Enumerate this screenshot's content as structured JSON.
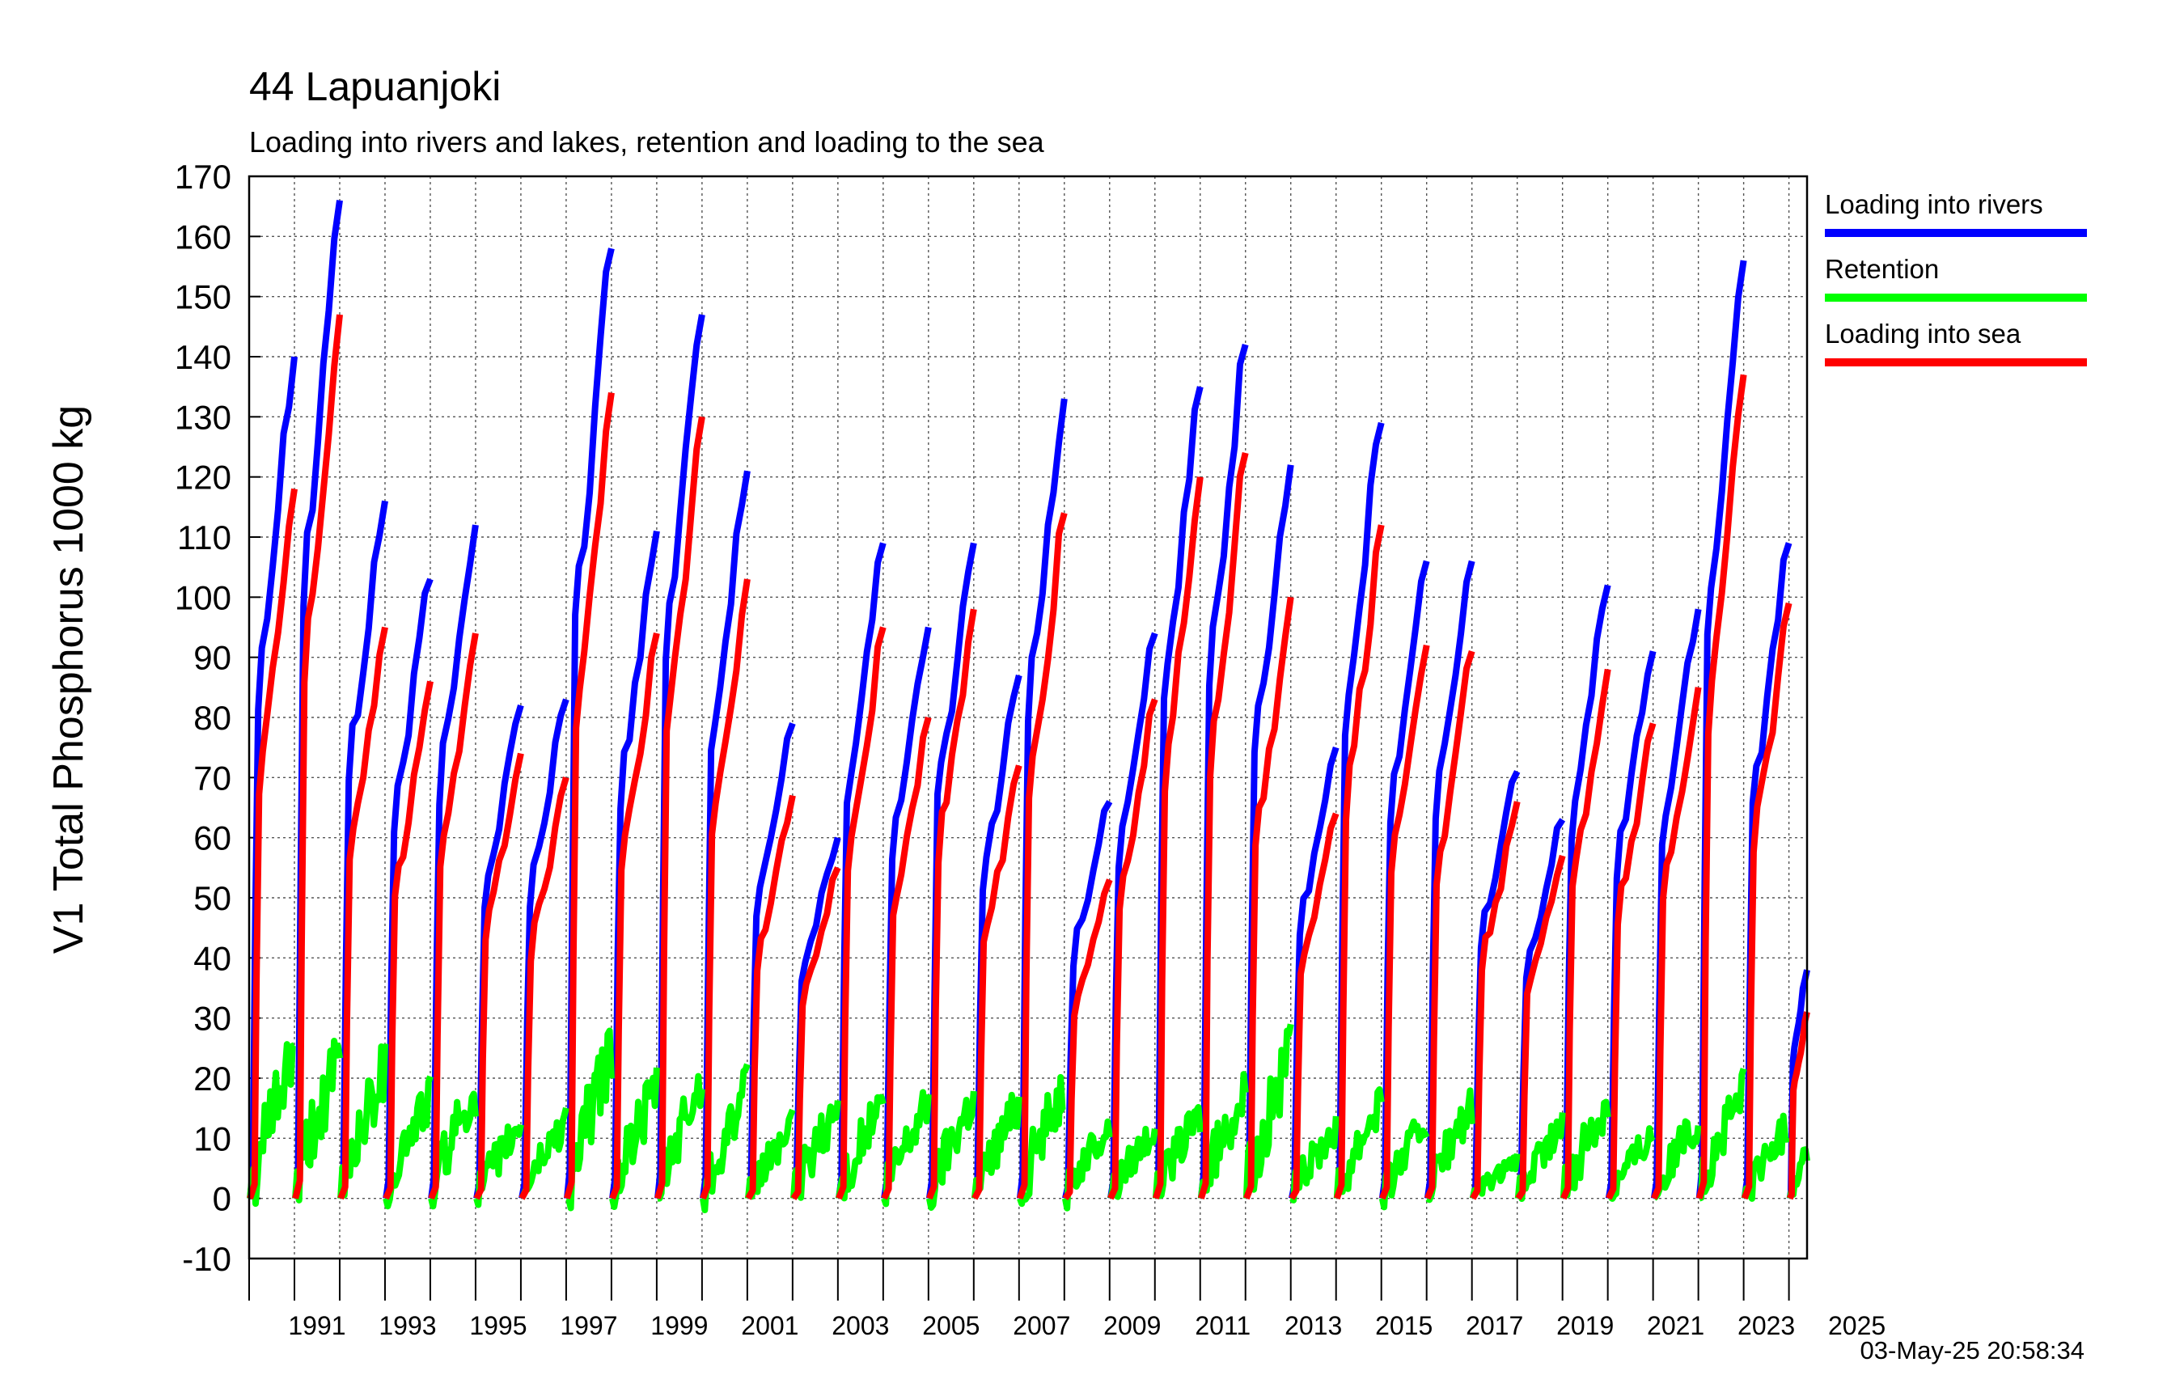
{
  "chart_data": {
    "type": "line",
    "title": "44 Lapuanjoki",
    "subtitle": "Loading into rivers and lakes, retention and loading to the sea",
    "ylabel": "V1 Total Phosphorus 1000 kg",
    "xlabel": "",
    "ylim": [
      -10,
      170
    ],
    "xlim": [
      1990,
      2024.4
    ],
    "grid": true,
    "legend_position": "right",
    "y_ticks": [
      "170",
      "160",
      "150",
      "140",
      "130",
      "120",
      "110",
      "100",
      "90",
      "80",
      "70",
      "60",
      "50",
      "40",
      "30",
      "20",
      "10",
      "0",
      "-10"
    ],
    "x_tick_labels": [
      "1991",
      "1993",
      "1995",
      "1997",
      "1999",
      "2001",
      "2003",
      "2005",
      "2007",
      "2009",
      "2011",
      "2013",
      "2015",
      "2017",
      "2019",
      "2021",
      "2023",
      "2025"
    ],
    "timestamp": "03-May-25 20:58:34",
    "years": [
      1990,
      1991,
      1992,
      1993,
      1994,
      1995,
      1996,
      1997,
      1998,
      1999,
      2000,
      2001,
      2002,
      2003,
      2004,
      2005,
      2006,
      2007,
      2008,
      2009,
      2010,
      2011,
      2012,
      2013,
      2014,
      2015,
      2016,
      2017,
      2018,
      2019,
      2020,
      2021,
      2022,
      2023,
      2024
    ],
    "series": [
      {
        "name": "Loading into rivers",
        "color": "#0000ff",
        "description": "Cumulative annual loading, resets each year",
        "year_end_values": [
          140,
          166,
          116,
          103,
          112,
          82,
          83,
          158,
          111,
          147,
          121,
          79,
          60,
          109,
          95,
          109,
          87,
          133,
          66,
          94,
          135,
          142,
          122,
          75,
          129,
          106,
          106,
          71,
          63,
          102,
          91,
          98,
          156,
          109,
          38
        ]
      },
      {
        "name": "Retention",
        "color": "#00ff00",
        "description": "Cumulative annual retention",
        "year_end_values": [
          24,
          23,
          22,
          17,
          18,
          12,
          13,
          24,
          18,
          19,
          18,
          12,
          15,
          16,
          16,
          17,
          16,
          19,
          12,
          12,
          14,
          18,
          24,
          12,
          17,
          13,
          15,
          6,
          12,
          16,
          11,
          13,
          18,
          12,
          8
        ]
      },
      {
        "name": "Loading into sea",
        "color": "#ff0000",
        "description": "Cumulative annual loading into sea",
        "year_end_values": [
          118,
          147,
          95,
          86,
          94,
          74,
          70,
          134,
          94,
          130,
          103,
          67,
          55,
          95,
          80,
          98,
          72,
          114,
          53,
          83,
          120,
          124,
          100,
          64,
          112,
          92,
          91,
          66,
          57,
          88,
          79,
          85,
          137,
          99,
          31
        ]
      }
    ]
  }
}
